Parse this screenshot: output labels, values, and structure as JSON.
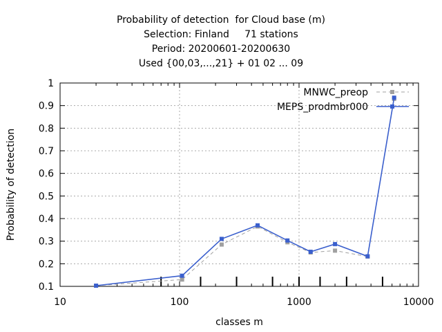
{
  "chart_data": {
    "type": "line",
    "title": [
      "Probability of detection  for Cloud base (m)",
      "Selection: Finland     71 stations",
      "Period: 20200601-20200630",
      "Used {00,03,...,21} + 01 02 ... 09"
    ],
    "xlabel": "classes m",
    "ylabel": "Probability of detection",
    "xscale": "log",
    "xlim": [
      10,
      10000
    ],
    "ylim": [
      0.1,
      1.0
    ],
    "grid": true,
    "legend_position": "top-right",
    "x_tick_labels": [
      "10",
      "100",
      "1000",
      "10000"
    ],
    "y_tick_labels": [
      "0.1",
      "0.2",
      "0.3",
      "0.4",
      "0.5",
      "0.6",
      "0.7",
      "0.8",
      "0.9",
      "1"
    ],
    "class_bounds": [
      70,
      150,
      300,
      600,
      1000,
      1500,
      2500,
      5000
    ],
    "series": [
      {
        "name": "MNWC_preop",
        "color": "#a0a0a0",
        "style": "dashed",
        "x": [
          20,
          105,
          225,
          450,
          800,
          1250,
          2000,
          3750,
          6250
        ],
        "y": [
          0.103,
          0.13,
          0.285,
          0.365,
          0.295,
          0.25,
          0.258,
          0.232,
          0.93
        ]
      },
      {
        "name": "MEPS_prodmbr000",
        "color": "#3a5fcd",
        "style": "solid",
        "x": [
          20,
          105,
          225,
          450,
          800,
          1250,
          2000,
          3750,
          6250
        ],
        "y": [
          0.103,
          0.147,
          0.31,
          0.37,
          0.303,
          0.253,
          0.287,
          0.233,
          0.935
        ]
      }
    ]
  }
}
